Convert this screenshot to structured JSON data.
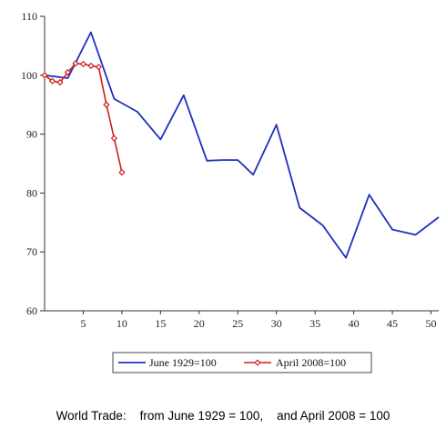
{
  "chart_data": {
    "type": "line",
    "x_ticks": [
      5,
      10,
      15,
      20,
      25,
      30,
      35,
      40,
      45,
      50
    ],
    "y_ticks": [
      60,
      70,
      80,
      90,
      100,
      110
    ],
    "xlim": [
      0,
      51
    ],
    "ylim": [
      60,
      110
    ],
    "grid": false,
    "legend_position": "bottom",
    "series": [
      {
        "name": "June 1929=100",
        "color": "#1f2fbf",
        "marker": "none",
        "x": [
          0,
          3,
          6,
          9,
          12,
          15,
          18,
          21,
          23,
          25,
          27,
          30,
          33,
          36,
          38,
          39,
          42,
          45,
          48,
          51
        ],
        "y": [
          100,
          99.5,
          107.3,
          96,
          93.8,
          89.1,
          96.6,
          85.5,
          85.6,
          85.6,
          83.1,
          91.6,
          77.5,
          74.5,
          70.8,
          69,
          79.7,
          73.8,
          72.9,
          75.9
        ]
      },
      {
        "name": "April 2008=100",
        "color": "#cc1f1f",
        "marker": "diamond",
        "x": [
          0,
          1,
          2,
          3,
          4,
          5,
          6,
          7,
          8,
          9,
          10
        ],
        "y": [
          100,
          99,
          98.8,
          100.5,
          102,
          101.9,
          101.6,
          101.4,
          95,
          89.3,
          83.5
        ]
      }
    ]
  },
  "caption": "World Trade:    from June 1929 = 100,    and April 2008 = 100"
}
